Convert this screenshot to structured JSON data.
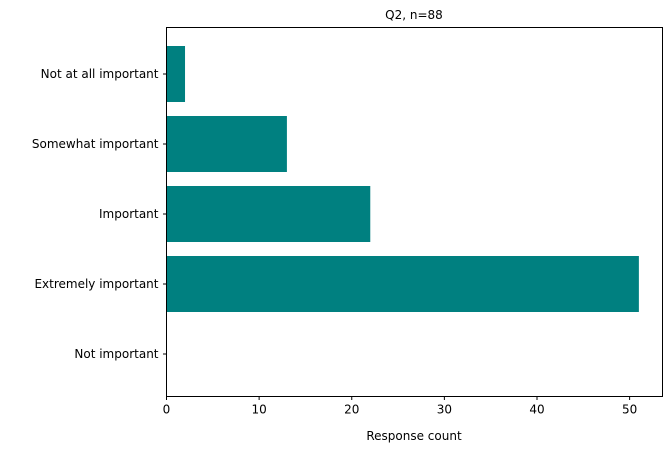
{
  "chart_data": {
    "type": "bar",
    "orientation": "horizontal",
    "title": "Q2, n=88",
    "xlabel": "Response count",
    "ylabel": "",
    "categories": [
      "Not at all important",
      "Somewhat important",
      "Important",
      "Extremely important",
      "Not important"
    ],
    "values": [
      2,
      13,
      22,
      51,
      0
    ],
    "xlim": [
      0,
      53.55
    ],
    "xticks": [
      0,
      10,
      20,
      30,
      40,
      50
    ],
    "grid": false,
    "bar_color": "#008080"
  }
}
